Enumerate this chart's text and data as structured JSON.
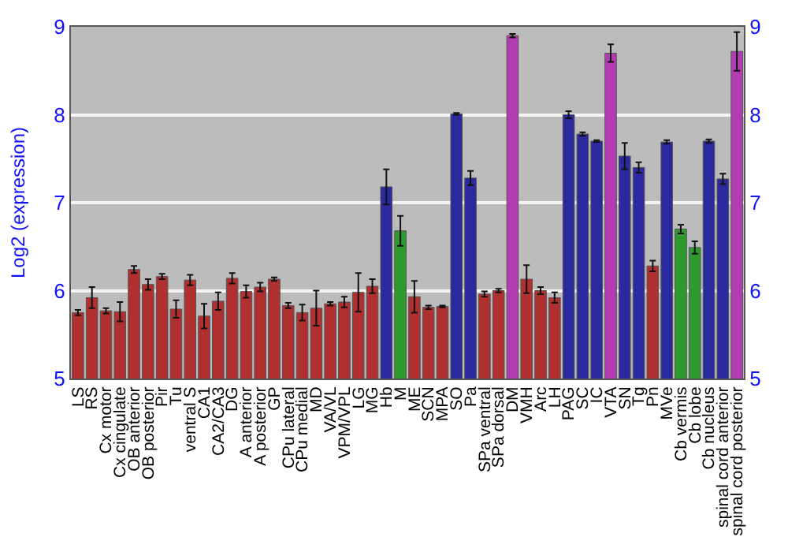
{
  "chart_data": {
    "type": "bar",
    "ylabel": "Log2 (expression)",
    "categories": [
      "LS",
      "RS",
      "Cx motor",
      "Cx cingulate",
      "OB anterior",
      "OB posterior",
      "Pir",
      "Tu",
      "ventral S",
      "CA1",
      "CA2/CA3",
      "DG",
      "A anterior",
      "A posterior",
      "GP",
      "CPu lateral",
      "CPu medial",
      "MD",
      "VA/VL",
      "VPM/VPL",
      "LG",
      "MG",
      "Hb",
      "M",
      "ME",
      "SCN",
      "MPA",
      "SO",
      "Pa",
      "SPa ventral",
      "SPa dorsal",
      "DM",
      "VMH",
      "Arc",
      "LH",
      "PAG",
      "SC",
      "IC",
      "VTA",
      "SN",
      "Tg",
      "Pn",
      "MVe",
      "Cb vermis",
      "Cb lobe",
      "Cb nucleus",
      "spinal cord anterior",
      "spinal cord posterior"
    ],
    "values": [
      5.75,
      5.92,
      5.77,
      5.76,
      6.24,
      6.07,
      6.16,
      5.79,
      6.12,
      5.71,
      5.88,
      6.14,
      5.99,
      6.04,
      6.13,
      5.83,
      5.75,
      5.8,
      5.85,
      5.87,
      5.98,
      6.05,
      7.18,
      6.68,
      5.93,
      5.81,
      5.82,
      8.01,
      7.28,
      5.96,
      6.0,
      8.9,
      6.13,
      6.0,
      5.92,
      8.0,
      7.78,
      7.7,
      8.7,
      7.53,
      7.4,
      6.28,
      7.69,
      6.7,
      6.49,
      7.7,
      7.27,
      8.72
    ],
    "errors": [
      0.03,
      0.12,
      0.03,
      0.11,
      0.04,
      0.06,
      0.03,
      0.1,
      0.06,
      0.14,
      0.1,
      0.06,
      0.07,
      0.05,
      0.02,
      0.03,
      0.09,
      0.2,
      0.02,
      0.06,
      0.22,
      0.08,
      0.2,
      0.17,
      0.18,
      0.02,
      0.01,
      0.01,
      0.08,
      0.03,
      0.02,
      0.02,
      0.16,
      0.04,
      0.06,
      0.04,
      0.02,
      0.01,
      0.1,
      0.15,
      0.06,
      0.06,
      0.02,
      0.05,
      0.07,
      0.02,
      0.06,
      0.22
    ],
    "colors": [
      "#b03030",
      "#b03030",
      "#b03030",
      "#b03030",
      "#b03030",
      "#b03030",
      "#b03030",
      "#b03030",
      "#b03030",
      "#b03030",
      "#b03030",
      "#b03030",
      "#b03030",
      "#b03030",
      "#b03030",
      "#b03030",
      "#b03030",
      "#b03030",
      "#b03030",
      "#b03030",
      "#b03030",
      "#b03030",
      "#2a2a9e",
      "#2e9a2e",
      "#b03030",
      "#b03030",
      "#b03030",
      "#2a2a9e",
      "#2a2a9e",
      "#b03030",
      "#b03030",
      "#b23cb2",
      "#b03030",
      "#b03030",
      "#b03030",
      "#2a2a9e",
      "#2a2a9e",
      "#2a2a9e",
      "#b23cb2",
      "#2a2a9e",
      "#2a2a9e",
      "#b03030",
      "#2a2a9e",
      "#2e9a2e",
      "#2e9a2e",
      "#2a2a9e",
      "#2a2a9e",
      "#b23cb2"
    ],
    "ylim": [
      5,
      9
    ],
    "yticks": [
      5,
      6,
      7,
      8,
      9
    ],
    "y2lim": [
      5,
      9
    ],
    "y2ticks": [
      5,
      6,
      7,
      8,
      9
    ],
    "grid": "y",
    "legend": false
  }
}
